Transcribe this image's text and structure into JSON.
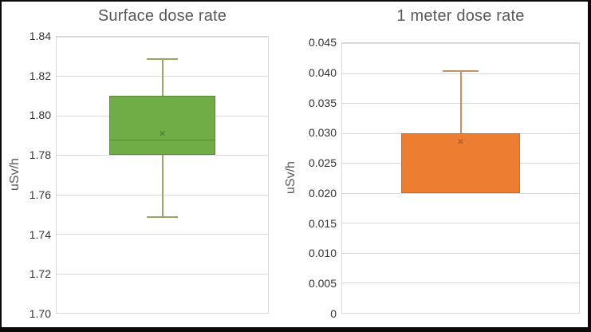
{
  "figure": {
    "background": "#ffffff",
    "frame_color": "#0a0a0a",
    "gridline_color": "#d9d9d9",
    "title_color": "#595959",
    "tick_color": "#333333"
  },
  "glyphs": {
    "mean_marker": "×"
  },
  "chart_data": [
    {
      "type": "box",
      "title": "Surface dose rate",
      "ylabel": "uSv/h",
      "ylim": [
        1.7,
        1.84
      ],
      "ytick_step": 0.02,
      "ytick_labels": [
        "1.84",
        "1.82",
        "1.80",
        "1.78",
        "1.76",
        "1.74",
        "1.72",
        "1.70"
      ],
      "grid": true,
      "legend": "none",
      "series": [
        {
          "name": "Surface dose rate",
          "q1": 1.78,
          "median": 1.788,
          "q3": 1.81,
          "whisker_low": 1.749,
          "whisker_high": 1.829,
          "mean": 1.791,
          "fill": "#70AD47",
          "border": "#588A36",
          "whisker_color": "#9AA563",
          "mean_color": "#4E7A2E"
        }
      ]
    },
    {
      "type": "box",
      "title": "1 meter dose rate",
      "ylabel": "uSv/h",
      "ylim": [
        0,
        0.045
      ],
      "ytick_step": 0.005,
      "ytick_labels": [
        "0.045",
        "0.040",
        "0.035",
        "0.030",
        "0.025",
        "0.020",
        "0.015",
        "0.010",
        "0.005",
        "0"
      ],
      "grid": true,
      "legend": "none",
      "series": [
        {
          "name": "1 meter dose rate",
          "q1": 0.02,
          "median": null,
          "q3": 0.03,
          "whisker_low": null,
          "whisker_high": 0.0405,
          "mean": 0.0286,
          "fill": "#ED7D31",
          "border": "#C86D2A",
          "whisker_color": "#C69061",
          "mean_color": "#9C5B2B"
        }
      ]
    }
  ]
}
